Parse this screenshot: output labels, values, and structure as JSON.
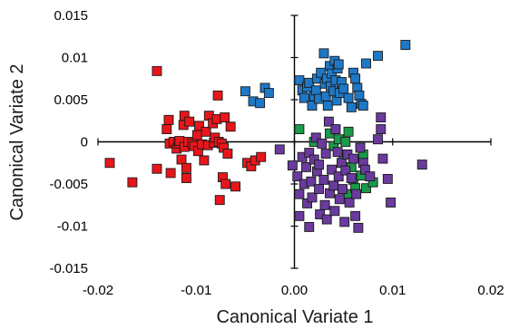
{
  "chart_data": {
    "type": "scatter",
    "title": "",
    "xlabel": "Canonical Variate 1",
    "ylabel": "Canonical Variate 2",
    "xlim": [
      -0.02,
      0.02
    ],
    "ylim": [
      -0.015,
      0.015
    ],
    "x_ticks": [
      -0.02,
      -0.01,
      0.0,
      0.01,
      0.02
    ],
    "y_ticks": [
      -0.015,
      -0.01,
      -0.005,
      0,
      0.005,
      0.01,
      0.015
    ],
    "x_tick_labels": [
      "-0.02",
      "-0.01",
      "0.00",
      "0.01",
      "0.02"
    ],
    "y_tick_labels": [
      "-0.015",
      "-0.01",
      "-0.005",
      "0",
      "0.005",
      "0.01",
      "0.015"
    ],
    "grid": false,
    "marker": "square",
    "series": [
      {
        "color": "#e8161b",
        "points": [
          [
            -0.0188,
            -0.0025
          ],
          [
            -0.0165,
            -0.0048
          ],
          [
            -0.014,
            0.0084
          ],
          [
            -0.014,
            -0.0032
          ],
          [
            -0.013,
            0.0015
          ],
          [
            -0.0128,
            0.0026
          ],
          [
            -0.0127,
            -0.0002
          ],
          [
            -0.0126,
            -0.0037
          ],
          [
            -0.0123,
            0.0
          ],
          [
            -0.012,
            -0.0008
          ],
          [
            -0.0118,
            -0.0002
          ],
          [
            -0.0117,
            0.0001
          ],
          [
            -0.0115,
            -0.0021
          ],
          [
            -0.0113,
            0.002
          ],
          [
            -0.0112,
            0.0031
          ],
          [
            -0.0112,
            -0.0006
          ],
          [
            -0.011,
            -0.0031
          ],
          [
            -0.011,
            -0.0043
          ],
          [
            -0.0108,
            0.0
          ],
          [
            -0.0107,
            0.0024
          ],
          [
            -0.0104,
            -0.0002
          ],
          [
            -0.0102,
            -0.0005
          ],
          [
            -0.0099,
            0.0008
          ],
          [
            -0.0098,
            -0.0011
          ],
          [
            -0.0097,
            0.0019
          ],
          [
            -0.0094,
            -0.0003
          ],
          [
            -0.0092,
            -0.0022
          ],
          [
            -0.009,
            0.0012
          ],
          [
            -0.0088,
            -0.0004
          ],
          [
            -0.0087,
            0.0031
          ],
          [
            -0.0083,
            0.0022
          ],
          [
            -0.0082,
            -0.0001
          ],
          [
            -0.0081,
            0.0005
          ],
          [
            -0.0079,
            0.0027
          ],
          [
            -0.0078,
            0.0055
          ],
          [
            -0.0077,
            0.0
          ],
          [
            -0.0076,
            -0.0069
          ],
          [
            -0.0074,
            -0.0002
          ],
          [
            -0.0073,
            -0.0042
          ],
          [
            -0.0072,
            -0.0007
          ],
          [
            -0.0071,
            0.0029
          ],
          [
            -0.007,
            -0.005
          ],
          [
            -0.0068,
            -0.0014
          ],
          [
            -0.0065,
            0.0018
          ],
          [
            -0.006,
            -0.0053
          ],
          [
            -0.0048,
            -0.0025
          ],
          [
            -0.0044,
            -0.0029
          ],
          [
            -0.004,
            -0.0022
          ],
          [
            -0.0034,
            -0.0018
          ]
        ]
      },
      {
        "color": "#1f78c6",
        "points": [
          [
            -0.005,
            0.006
          ],
          [
            -0.0042,
            0.0048
          ],
          [
            -0.0035,
            0.0046
          ],
          [
            -0.003,
            0.0064
          ],
          [
            -0.0026,
            0.0058
          ],
          [
            0.0005,
            0.0073
          ],
          [
            0.0008,
            0.0061
          ],
          [
            0.001,
            0.0052
          ],
          [
            0.0013,
            0.0065
          ],
          [
            0.0015,
            0.007
          ],
          [
            0.0018,
            0.0043
          ],
          [
            0.002,
            0.0054
          ],
          [
            0.0022,
            0.0061
          ],
          [
            0.0023,
            0.0075
          ],
          [
            0.0025,
            0.0051
          ],
          [
            0.0027,
            0.0082
          ],
          [
            0.003,
            0.0105
          ],
          [
            0.0031,
            0.0069
          ],
          [
            0.0032,
            0.0054
          ],
          [
            0.0033,
            0.0075
          ],
          [
            0.0034,
            0.0043
          ],
          [
            0.0036,
            0.009
          ],
          [
            0.0037,
            0.0066
          ],
          [
            0.0038,
            0.0081
          ],
          [
            0.004,
            0.006
          ],
          [
            0.0041,
            0.0096
          ],
          [
            0.0042,
            0.0073
          ],
          [
            0.0043,
            0.0049
          ],
          [
            0.0044,
            0.0087
          ],
          [
            0.0045,
            0.0092
          ],
          [
            0.0046,
            0.0058
          ],
          [
            0.0048,
            0.0071
          ],
          [
            0.005,
            0.0063
          ],
          [
            0.0055,
            0.0052
          ],
          [
            0.0058,
            0.0041
          ],
          [
            0.006,
            0.0082
          ],
          [
            0.0062,
            0.0075
          ],
          [
            0.0064,
            0.0064
          ],
          [
            0.0066,
            0.0055
          ],
          [
            0.0068,
            0.0045
          ],
          [
            0.007,
            0.0043
          ],
          [
            0.0073,
            0.0093
          ],
          [
            0.0085,
            0.0102
          ],
          [
            0.0113,
            0.0115
          ]
        ]
      },
      {
        "color": "#1a9a4a",
        "points": [
          [
            0.0005,
            0.0015
          ],
          [
            0.002,
            0.0
          ],
          [
            0.0036,
            0.001
          ],
          [
            0.004,
            -0.0005
          ],
          [
            0.0045,
            0.0003
          ],
          [
            0.005,
            -0.0015
          ],
          [
            0.0052,
            0.0
          ],
          [
            0.0055,
            0.0012
          ],
          [
            0.0055,
            -0.0062
          ],
          [
            0.0058,
            -0.003
          ],
          [
            0.006,
            -0.0045
          ],
          [
            0.0062,
            -0.0055
          ],
          [
            0.0068,
            -0.004
          ],
          [
            0.007,
            -0.0015
          ],
          [
            0.0073,
            -0.0055
          ],
          [
            0.008,
            -0.0048
          ]
        ]
      },
      {
        "color": "#6a3a9e",
        "points": [
          [
            -0.0015,
            -0.0009
          ],
          [
            -0.0002,
            -0.0028
          ],
          [
            0.0003,
            -0.0041
          ],
          [
            0.0005,
            -0.0062
          ],
          [
            0.0005,
            -0.0088
          ],
          [
            0.0008,
            -0.0018
          ],
          [
            0.001,
            -0.005
          ],
          [
            0.0012,
            -0.003
          ],
          [
            0.0013,
            -0.0073
          ],
          [
            0.0015,
            -0.0013
          ],
          [
            0.0015,
            -0.0101
          ],
          [
            0.0017,
            -0.0047
          ],
          [
            0.0018,
            -0.0066
          ],
          [
            0.002,
            -0.0021
          ],
          [
            0.0022,
            0.0005
          ],
          [
            0.0023,
            -0.0035
          ],
          [
            0.0025,
            -0.0056
          ],
          [
            0.0026,
            -0.0086
          ],
          [
            0.0028,
            -0.0002
          ],
          [
            0.003,
            -0.0045
          ],
          [
            0.0032,
            -0.0014
          ],
          [
            0.0033,
            -0.0092
          ],
          [
            0.0035,
            0.0024
          ],
          [
            0.0036,
            -0.0061
          ],
          [
            0.0038,
            -0.0033
          ],
          [
            0.004,
            -0.0052
          ],
          [
            0.0041,
            -0.0082
          ],
          [
            0.0042,
            0.0015
          ],
          [
            0.0044,
            -0.0012
          ],
          [
            0.0045,
            -0.0041
          ],
          [
            0.0046,
            -0.0068
          ],
          [
            0.0048,
            -0.0025
          ],
          [
            0.0049,
            -0.0056
          ],
          [
            0.0051,
            -0.0095
          ],
          [
            0.0052,
            -0.0034
          ],
          [
            0.0054,
            -0.0015
          ],
          [
            0.0056,
            -0.0072
          ],
          [
            0.0058,
            -0.0043
          ],
          [
            0.006,
            -0.002
          ],
          [
            0.0062,
            -0.0088
          ],
          [
            0.0063,
            -0.0062
          ],
          [
            0.0065,
            -0.0102
          ],
          [
            0.0067,
            -0.0007
          ],
          [
            0.007,
            -0.0025
          ],
          [
            0.0072,
            -0.0033
          ],
          [
            0.0077,
            -0.0041
          ],
          [
            0.0085,
            0.0003
          ],
          [
            0.0088,
            0.0015
          ],
          [
            0.009,
            -0.002
          ],
          [
            0.0095,
            -0.0044
          ],
          [
            0.0098,
            -0.0072
          ],
          [
            0.013,
            -0.0027
          ],
          [
            0.0088,
            0.0029
          ],
          [
            0.0025,
            -0.0027
          ],
          [
            0.0031,
            -0.0075
          ]
        ]
      }
    ]
  }
}
